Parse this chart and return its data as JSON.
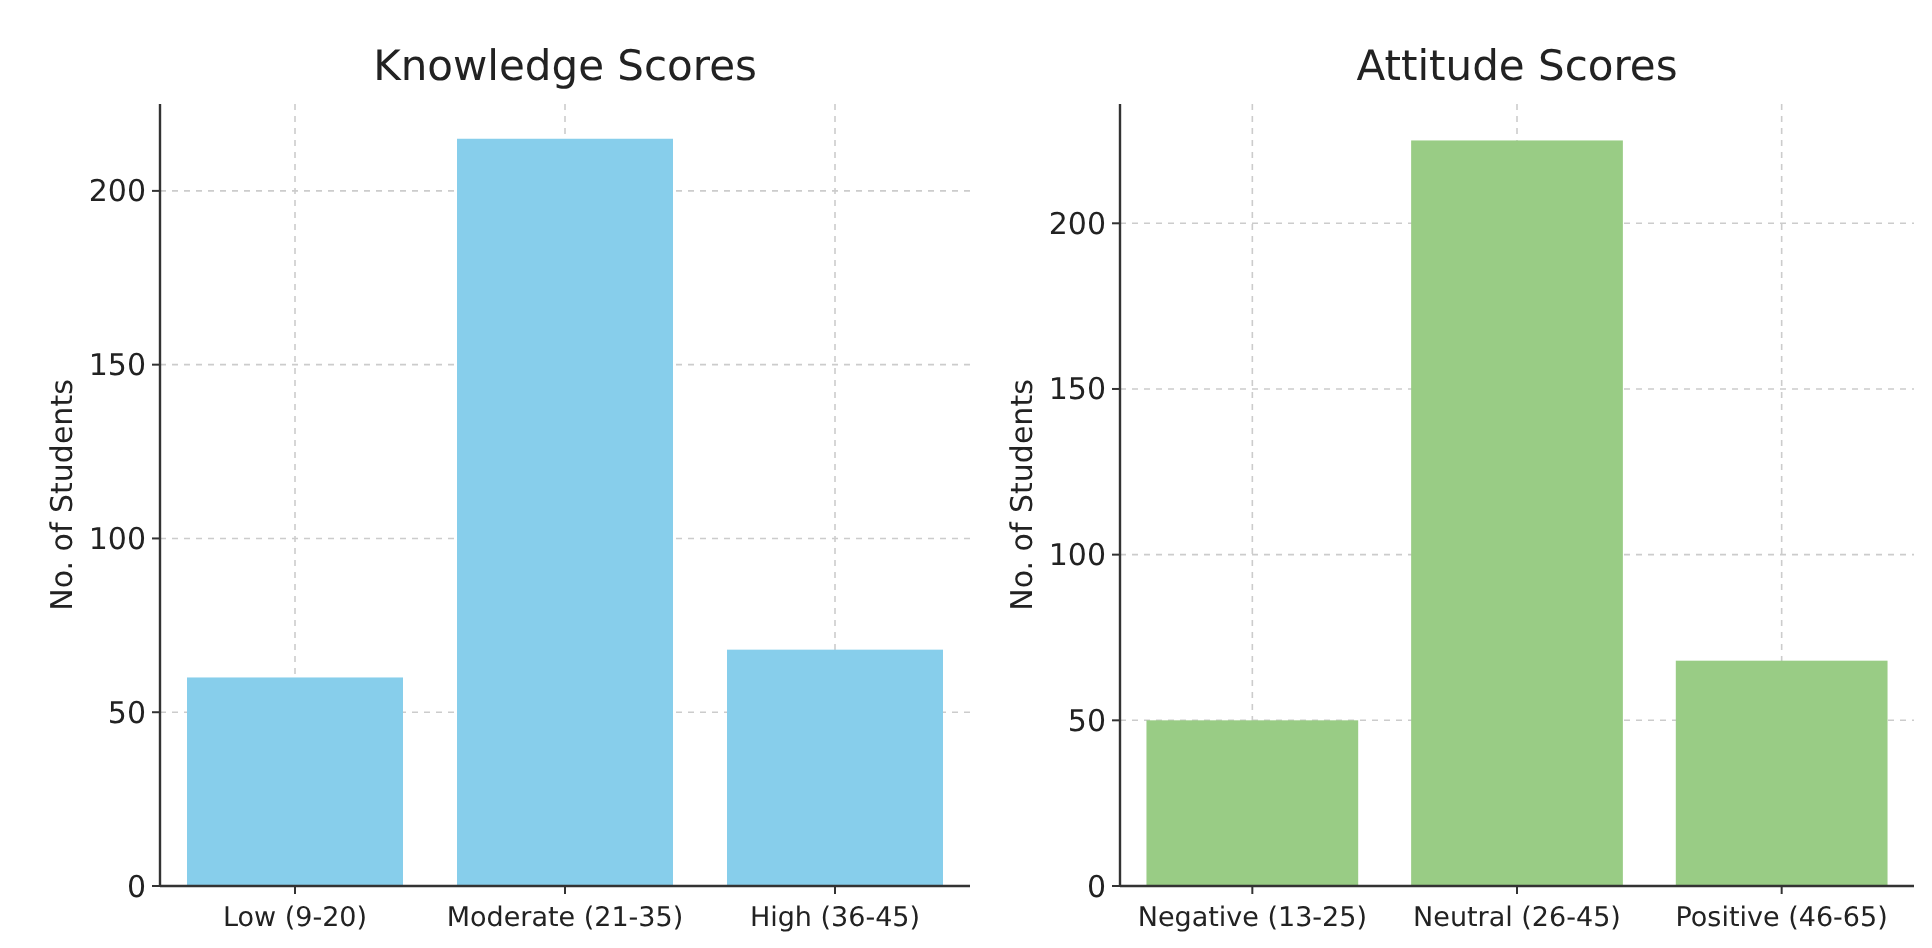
{
  "chart_data": [
    {
      "type": "bar",
      "title": "Knowledge Scores",
      "ylabel": "No. of Students",
      "categories": [
        "Low (9-20)",
        "Moderate (21-35)",
        "High (36-45)"
      ],
      "values": [
        60,
        215,
        68
      ],
      "color": "#87ceeb",
      "ylim": [
        0,
        225
      ],
      "yticks": [
        0,
        50,
        100,
        150,
        200
      ],
      "grid": true
    },
    {
      "type": "bar",
      "title": "Attitude Scores",
      "ylabel": "No. of Students",
      "categories": [
        "Negative (13-25)",
        "Neutral (26-45)",
        "Positive (46-65)"
      ],
      "values": [
        50,
        225,
        68
      ],
      "color": "#99cc85",
      "ylim": [
        0,
        236
      ],
      "yticks": [
        0,
        50,
        100,
        150,
        200
      ],
      "grid": true
    }
  ]
}
